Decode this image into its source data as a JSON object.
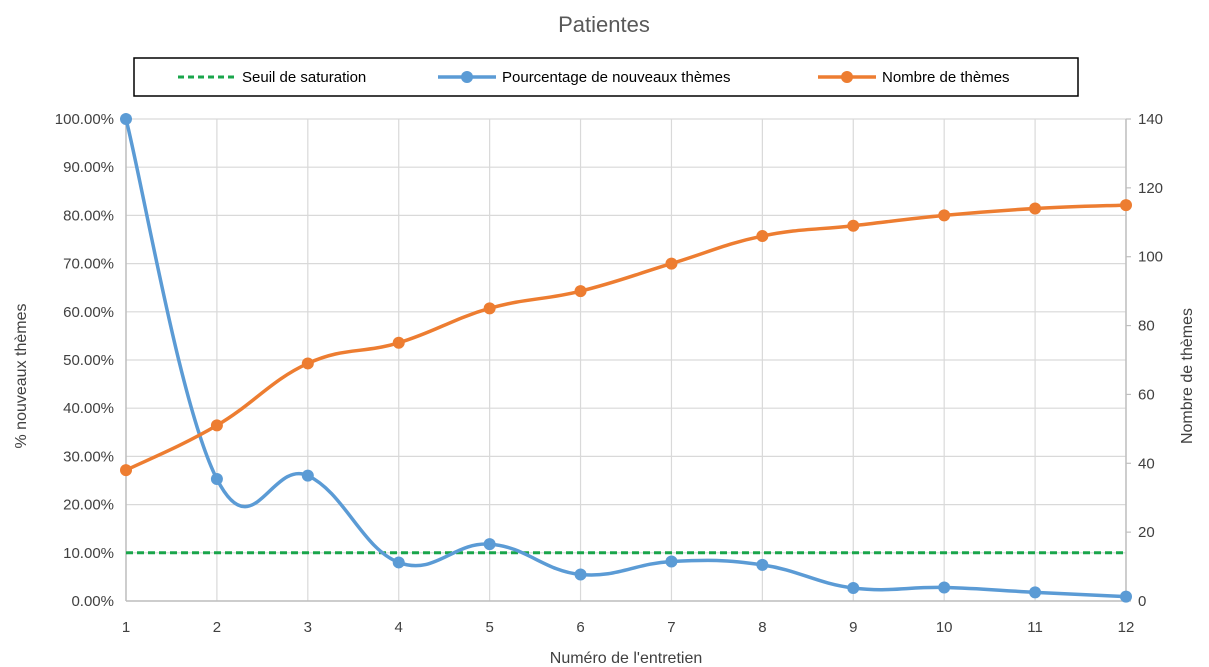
{
  "chart_data": {
    "type": "line",
    "title": "Patientes",
    "xlabel": "Numéro de l'entretien",
    "ylabel_left": "% nouveaux thèmes",
    "ylabel_right": "Nombre de thèmes",
    "x": [
      1,
      2,
      3,
      4,
      5,
      6,
      7,
      8,
      9,
      10,
      11,
      12
    ],
    "y_left_ticks": [
      "0.00%",
      "10.00%",
      "20.00%",
      "30.00%",
      "40.00%",
      "50.00%",
      "60.00%",
      "70.00%",
      "80.00%",
      "90.00%",
      "100.00%"
    ],
    "y_right_ticks": [
      "0",
      "20",
      "40",
      "60",
      "80",
      "100",
      "120",
      "140"
    ],
    "ylim_left": [
      0,
      1
    ],
    "ylim_right": [
      0,
      140
    ],
    "grid": true,
    "legend_position": "top",
    "series": [
      {
        "name": "Seuil de saturation",
        "axis": "left",
        "style": "dashed",
        "color": "#1aa54b",
        "values": [
          0.1,
          0.1,
          0.1,
          0.1,
          0.1,
          0.1,
          0.1,
          0.1,
          0.1,
          0.1,
          0.1,
          0.1
        ]
      },
      {
        "name": "Pourcentage de nouveaux thèmes",
        "axis": "left",
        "style": "line-markers",
        "color": "#5b9bd5",
        "values": [
          1.0,
          0.253,
          0.26,
          0.08,
          0.118,
          0.055,
          0.082,
          0.075,
          0.027,
          0.028,
          0.018,
          0.009
        ]
      },
      {
        "name": "Nombre de thèmes",
        "axis": "right",
        "style": "line-markers",
        "color": "#ed7d31",
        "values": [
          38,
          51,
          69,
          75,
          85,
          90,
          98,
          106,
          109,
          112,
          114,
          115
        ]
      }
    ]
  }
}
